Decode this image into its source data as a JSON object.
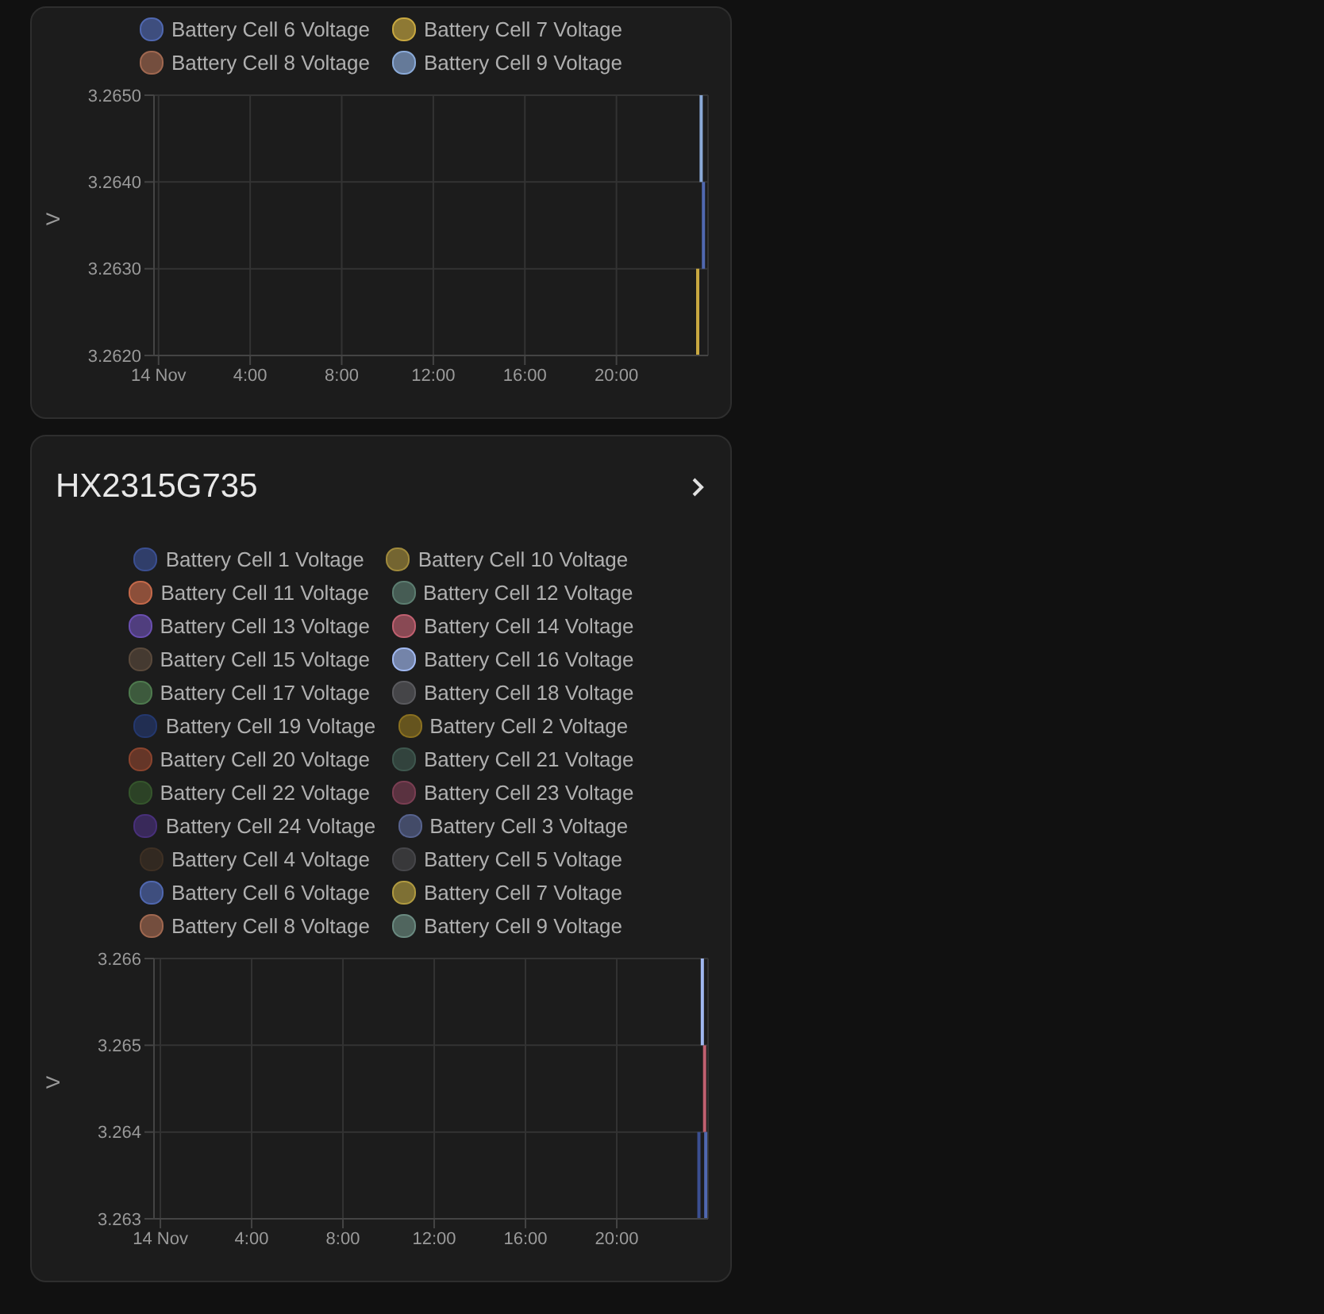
{
  "chart_data": [
    {
      "type": "line",
      "ylabel": "V",
      "legend": "top",
      "grid": true,
      "marker": "none",
      "xlim": [
        -0.2,
        24
      ],
      "xticks": [
        {
          "value": 0,
          "label": "14 Nov"
        },
        {
          "value": 4,
          "label": "4:00"
        },
        {
          "value": 8,
          "label": "8:00"
        },
        {
          "value": 12,
          "label": "12:00"
        },
        {
          "value": 16,
          "label": "16:00"
        },
        {
          "value": 20,
          "label": "20:00"
        }
      ],
      "ylim": [
        3.262,
        3.265
      ],
      "yticks": [
        {
          "value": 3.262,
          "label": "3.2620"
        },
        {
          "value": 3.263,
          "label": "3.2630"
        },
        {
          "value": 3.264,
          "label": "3.2640"
        },
        {
          "value": 3.265,
          "label": "3.2650"
        }
      ],
      "series": [
        {
          "name": "Battery Cell 6 Voltage",
          "color": "#5068b0",
          "x": [
            23.8,
            23.8
          ],
          "values": [
            3.264,
            3.263
          ]
        },
        {
          "name": "Battery Cell 7 Voltage",
          "color": "#c8a840",
          "x": [
            23.55,
            23.55
          ],
          "values": [
            3.263,
            3.262
          ]
        },
        {
          "name": "Battery Cell 8 Voltage",
          "color": "#a06850",
          "values": [
            null,
            null
          ]
        },
        {
          "name": "Battery Cell 9 Voltage",
          "color": "#8aaad8",
          "x": [
            23.7,
            23.7
          ],
          "values": [
            3.265,
            3.264
          ]
        }
      ]
    },
    {
      "type": "line",
      "title": "HX2315G735",
      "ylabel": "V",
      "legend": "top",
      "grid": true,
      "marker": "none",
      "xlim": [
        -0.28,
        24
      ],
      "xticks": [
        {
          "value": 0,
          "label": "14 Nov"
        },
        {
          "value": 4,
          "label": "4:00"
        },
        {
          "value": 8,
          "label": "8:00"
        },
        {
          "value": 12,
          "label": "12:00"
        },
        {
          "value": 16,
          "label": "16:00"
        },
        {
          "value": 20,
          "label": "20:00"
        }
      ],
      "ylim": [
        3.263,
        3.266
      ],
      "yticks": [
        3.263,
        3.264,
        3.265,
        3.266
      ],
      "series": [
        {
          "name": "Battery Cell 1 Voltage",
          "color": "#3b4f91",
          "x": [
            23.6,
            23.6
          ],
          "values": [
            3.264,
            3.263
          ]
        },
        {
          "name": "Battery Cell 10 Voltage",
          "color": "#a08a3c",
          "values": [
            null,
            null
          ]
        },
        {
          "name": "Battery Cell 11 Voltage",
          "color": "#c4694a",
          "values": [
            null,
            null
          ]
        },
        {
          "name": "Battery Cell 12 Voltage",
          "color": "#5c7d70",
          "values": [
            null,
            null
          ]
        },
        {
          "name": "Battery Cell 13 Voltage",
          "color": "#6a4fb0",
          "values": [
            null,
            null
          ]
        },
        {
          "name": "Battery Cell 14 Voltage",
          "color": "#c06070",
          "x": [
            23.85,
            23.85
          ],
          "values": [
            3.265,
            3.264
          ]
        },
        {
          "name": "Battery Cell 15 Voltage",
          "color": "#5a4a3c",
          "values": [
            null,
            null
          ]
        },
        {
          "name": "Battery Cell 16 Voltage",
          "color": "#a0b8f0",
          "x": [
            23.75,
            23.75
          ],
          "values": [
            3.266,
            3.265
          ]
        },
        {
          "name": "Battery Cell 17 Voltage",
          "color": "#4e7a4e",
          "values": [
            null,
            null
          ]
        },
        {
          "name": "Battery Cell 18 Voltage",
          "color": "#5a5a5e",
          "values": [
            null,
            null
          ]
        },
        {
          "name": "Battery Cell 19 Voltage",
          "color": "#24386e",
          "values": [
            null,
            null
          ]
        },
        {
          "name": "Battery Cell 2 Voltage",
          "color": "#8a7020",
          "values": [
            null,
            null
          ]
        },
        {
          "name": "Battery Cell 20 Voltage",
          "color": "#8a442e",
          "values": [
            null,
            null
          ]
        },
        {
          "name": "Battery Cell 21 Voltage",
          "color": "#3e574e",
          "values": [
            null,
            null
          ]
        },
        {
          "name": "Battery Cell 22 Voltage",
          "color": "#35552c",
          "values": [
            null,
            null
          ]
        },
        {
          "name": "Battery Cell 23 Voltage",
          "color": "#7a3e52",
          "values": [
            null,
            null
          ]
        },
        {
          "name": "Battery Cell 24 Voltage",
          "color": "#48307a",
          "values": [
            null,
            null
          ]
        },
        {
          "name": "Battery Cell 3 Voltage",
          "color": "#57638e",
          "values": [
            null,
            null
          ]
        },
        {
          "name": "Battery Cell 4 Voltage",
          "color": "#3e3024",
          "values": [
            null,
            null
          ]
        },
        {
          "name": "Battery Cell 5 Voltage",
          "color": "#46464a",
          "values": [
            null,
            null
          ]
        },
        {
          "name": "Battery Cell 6 Voltage",
          "color": "#5068b0",
          "x": [
            23.9,
            23.9
          ],
          "values": [
            3.264,
            3.263
          ]
        },
        {
          "name": "Battery Cell 7 Voltage",
          "color": "#b09a40",
          "values": [
            null,
            null
          ]
        },
        {
          "name": "Battery Cell 8 Voltage",
          "color": "#a06850",
          "values": [
            null,
            null
          ]
        },
        {
          "name": "Battery Cell 9 Voltage",
          "color": "#6a8a80",
          "values": [
            null,
            null
          ]
        }
      ]
    }
  ]
}
